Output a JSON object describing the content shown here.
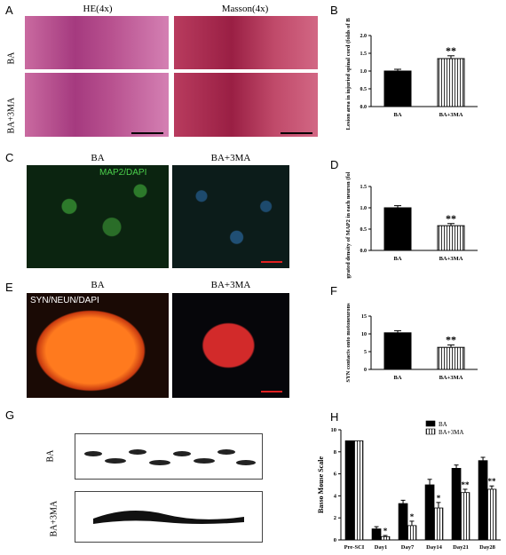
{
  "panels": {
    "A": {
      "letter": "A",
      "col1": "HE(4x)",
      "col2": "Masson(4x)",
      "row1": "BA",
      "row2": "BA+3MA"
    },
    "B": {
      "letter": "B"
    },
    "C": {
      "letter": "C",
      "col1": "BA",
      "col2": "BA+3MA",
      "stain": "MAP2/DAPI"
    },
    "D": {
      "letter": "D"
    },
    "E": {
      "letter": "E",
      "col1": "BA",
      "col2": "BA+3MA",
      "stain": "SYN/NEUN/DAPI"
    },
    "F": {
      "letter": "F"
    },
    "G": {
      "letter": "G",
      "row1": "BA",
      "row2": "BA+3MA"
    },
    "H": {
      "letter": "H"
    }
  },
  "chart_data": [
    {
      "id": "B",
      "type": "bar",
      "ylabel": "Lesion area in injuried spinal cord (folds of BA)",
      "categories": [
        "BA",
        "BA+3MA"
      ],
      "values": [
        1.0,
        1.35
      ],
      "errors": [
        0.05,
        0.08
      ],
      "ylim": [
        0,
        2.0
      ],
      "yticks": [
        0,
        0.5,
        1.0,
        1.5,
        2.0
      ],
      "significance": [
        "",
        "**"
      ],
      "fills": [
        "solid",
        "striped"
      ]
    },
    {
      "id": "D",
      "type": "bar",
      "ylabel": "Integrated density of MAP2 in each neuron (folds of BA)",
      "categories": [
        "BA",
        "BA+3MA"
      ],
      "values": [
        1.0,
        0.58
      ],
      "errors": [
        0.05,
        0.05
      ],
      "ylim": [
        0,
        1.5
      ],
      "yticks": [
        0,
        0.5,
        1.0,
        1.5
      ],
      "significance": [
        "",
        "**"
      ],
      "fills": [
        "solid",
        "striped"
      ]
    },
    {
      "id": "F",
      "type": "bar",
      "ylabel": "SYN contacts onto motoneurons",
      "categories": [
        "BA",
        "BA+3MA"
      ],
      "values": [
        10.3,
        6.2
      ],
      "errors": [
        0.6,
        0.7
      ],
      "ylim": [
        0,
        15
      ],
      "yticks": [
        0,
        5,
        10,
        15
      ],
      "significance": [
        "",
        "**"
      ],
      "fills": [
        "solid",
        "striped"
      ]
    },
    {
      "id": "H",
      "type": "bar",
      "ylabel": "Basso Mouse Scale",
      "categories": [
        "Pre-SCI",
        "Day1",
        "Day7",
        "Day14",
        "Day21",
        "Day28"
      ],
      "series": [
        {
          "name": "BA",
          "values": [
            9,
            1.0,
            3.3,
            5.0,
            6.5,
            7.2
          ],
          "errors": [
            0,
            0.2,
            0.3,
            0.5,
            0.3,
            0.3
          ]
        },
        {
          "name": "BA+3MA",
          "values": [
            9,
            0.3,
            1.3,
            2.9,
            4.3,
            4.6
          ],
          "errors": [
            0,
            0.1,
            0.4,
            0.5,
            0.3,
            0.3
          ]
        }
      ],
      "significance": [
        "",
        "*",
        "*",
        "*",
        "**",
        "**"
      ],
      "ylim": [
        0,
        10
      ],
      "yticks": [
        0,
        2,
        4,
        6,
        8,
        10
      ],
      "legend": "top-right"
    }
  ]
}
